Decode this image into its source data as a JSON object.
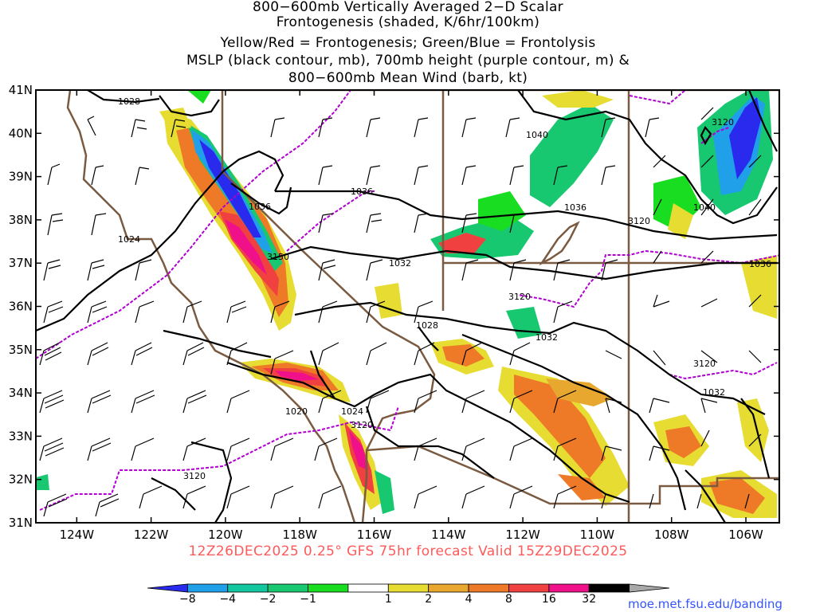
{
  "title": {
    "line1": "800−600mb Vertically Averaged 2−D Scalar",
    "line2": "Frontogenesis (shaded, K/6hr/100km)",
    "line3": "Yellow/Red = Frontogenesis;  Green/Blue = Frontolysis",
    "line4": "MSLP (black contour, mb), 700mb height (purple contour, m) &",
    "line5": "800−600mb Mean Wind (barb, kt)"
  },
  "axes": {
    "lat_labels": [
      "41N",
      "40N",
      "39N",
      "38N",
      "37N",
      "36N",
      "35N",
      "34N",
      "33N",
      "32N",
      "31N"
    ],
    "lon_labels": [
      "124W",
      "122W",
      "120W",
      "118W",
      "116W",
      "114W",
      "112W",
      "110W",
      "108W",
      "106W"
    ],
    "lat_values": [
      41,
      40,
      39,
      38,
      37,
      36,
      35,
      34,
      33,
      32,
      31
    ],
    "lon_values": [
      -124,
      -122,
      -120,
      -118,
      -116,
      -114,
      -112,
      -110,
      -108,
      -106
    ]
  },
  "contour_labels": {
    "mslp": [
      "1028",
      "1040",
      "1036",
      "1036",
      "1036",
      "1024",
      "1032",
      "1028",
      "1032",
      "1032",
      "1024",
      "1020",
      "1040",
      "1036",
      "1032"
    ],
    "height": [
      "3120",
      "3150",
      "3120",
      "3120",
      "3120",
      "3120"
    ]
  },
  "footer": "12Z26DEC2025 0.25° GFS 75hr forecast Valid 15Z29DEC2025",
  "colorbar": {
    "labels": [
      "−8",
      "−4",
      "−2",
      "−1",
      "1",
      "2",
      "4",
      "8",
      "16",
      "32"
    ],
    "colors": [
      "#2a2aee",
      "#1fa0e8",
      "#12c6a0",
      "#18c870",
      "#18dd20",
      "#ffffff",
      "#e6dc32",
      "#e8a830",
      "#ee7a28",
      "#f04040",
      "#f0108a",
      "#000000",
      "#a8a8a8"
    ]
  },
  "colors": {
    "state_border": "#7a5a40",
    "height_contour": "#b000d0",
    "mslp_contour": "#000000",
    "footer_text": "#ff5a5a",
    "credit_text": "#3355ff"
  },
  "credit": "moe.met.fsu.edu/banding"
}
